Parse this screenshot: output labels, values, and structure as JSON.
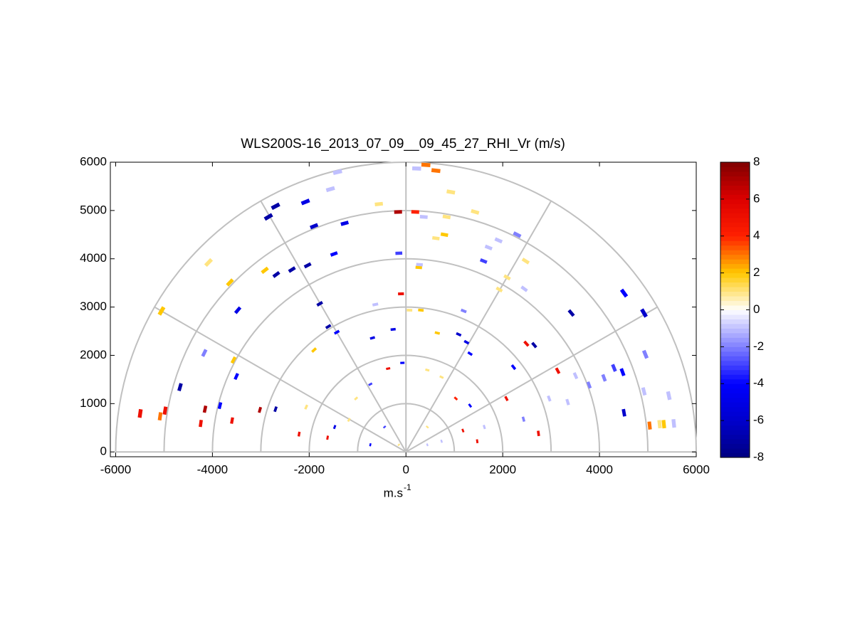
{
  "chart_data": {
    "type": "scatter",
    "title": "WLS200S-16_2013_07_09__09_45_27_RHI_Vr (m/s)",
    "x_label": "m.s",
    "x_label_superscript": "-1",
    "xlim": [
      -6110,
      6000
    ],
    "ylim": [
      -100,
      6000
    ],
    "xticks": [
      -6000,
      -4000,
      -2000,
      0,
      2000,
      4000,
      6000
    ],
    "yticks": [
      0,
      1000,
      2000,
      3000,
      4000,
      5000,
      6000
    ],
    "polar_rings": [
      1000,
      2000,
      3000,
      4000,
      5000,
      6000
    ],
    "polar_spokes_deg": [
      0,
      30,
      60,
      90,
      120,
      150,
      180
    ],
    "clim": [
      -8,
      8
    ],
    "colorbar_ticks": [
      -8,
      -6,
      -4,
      -2,
      0,
      2,
      4,
      6,
      8
    ],
    "colormap": [
      "#000080",
      "#0000cc",
      "#0000ff",
      "#8080ff",
      "#ffffff",
      "#ffc800",
      "#ff2000",
      "#dd0000",
      "#800000"
    ],
    "x": [
      -1414,
      -1561,
      -2695,
      -2842,
      -2077,
      -1267,
      -1900,
      -560,
      -162,
      221,
      412,
      619,
      928,
      1428,
      192,
      368,
      840,
      795,
      619,
      2298,
      1708,
      1914,
      1605,
      2474,
      2091,
      1929,
      2445,
      3417,
      4507,
      4919,
      2489,
      2651,
      3137,
      3505,
      4300,
      4477,
      4948,
      3785,
      4094,
      4919,
      5434,
      4507,
      5037,
      5243,
      5537,
      5331,
      2960,
      3343,
      2430,
      2739,
      2077,
      2224,
      1325,
      1252,
      1090,
      1193,
      648,
      309,
      74,
      -103,
      265,
      280,
      -147,
      -633,
      -265,
      -692,
      -1429,
      -1605,
      -1782,
      -1900,
      -1487,
      -2032,
      -2356,
      -2680,
      -2916,
      -3476,
      -3638,
      -4080,
      -5052,
      -4168,
      -3505,
      -3564,
      -4669,
      -5081,
      -4978,
      -5493,
      -4153,
      -4241,
      -3594,
      -3019,
      -2695,
      -3844,
      -2062,
      -2209,
      -368,
      -74,
      442,
      736,
      -736,
      -1031,
      1031,
      1325,
      -1473,
      -1178,
      -442,
      442,
      1178,
      1620,
      -147,
      442,
      736,
      -736,
      1473,
      -1620
    ],
    "y": [
      5796,
      5442,
      5088,
      4867,
      5177,
      4734,
      4675,
      5133,
      4970,
      5870,
      5944,
      5826,
      5383,
      4970,
      4970,
      4867,
      4867,
      4499,
      4425,
      4499,
      4233,
      4381,
      3953,
      3953,
      3614,
      3363,
      3378,
      2876,
      3289,
      2876,
      2242,
      2212,
      1681,
      1578,
      1740,
      1652,
      2020,
      1386,
      1534,
      1254,
      1165,
      811,
      546,
      575,
      590,
      575,
      1106,
      1032,
      678,
      383,
      1106,
      1755,
      2035,
      2271,
      2434,
      2920,
      2463,
      2935,
      2935,
      3274,
      3820,
      3879,
      4115,
      3053,
      2537,
      2360,
      2478,
      2596,
      3068,
      2109,
      4100,
      3864,
      3776,
      3673,
      3761,
      2935,
      3510,
      3923,
      2920,
      2050,
      1563,
      1903,
      1342,
      737,
      855,
      796,
      885,
      590,
      649,
      870,
      885,
      959,
      929,
      369,
      1726,
      1844,
      1696,
      1549,
      1401,
      1106,
      1106,
      959,
      516,
      664,
      516,
      516,
      442,
      516,
      147,
      147,
      221,
      147,
      221,
      295
    ],
    "values": [
      -1,
      -1,
      -7,
      -7,
      -5,
      -5,
      -6,
      1,
      7,
      -1,
      3,
      3,
      1,
      1,
      4,
      -1,
      1,
      2,
      1,
      -2,
      -1,
      -1,
      -3,
      1,
      1,
      1,
      -1,
      -7,
      -4,
      -6,
      5,
      -7,
      5,
      -1,
      -3,
      -4,
      -2,
      -2,
      -2,
      -1,
      -1,
      -6,
      3,
      1,
      -1,
      2,
      -1,
      -1,
      -2,
      5,
      5,
      -4,
      -4,
      -5,
      -6,
      -2,
      2,
      2,
      1,
      5,
      2,
      -1,
      -3,
      -1,
      -5,
      -5,
      -4,
      -7,
      -7,
      2,
      -4,
      -7,
      -7,
      -7,
      2,
      -5,
      2,
      1,
      2,
      -2,
      -4,
      2,
      -7,
      3,
      5,
      5,
      7,
      5,
      5,
      7,
      -7,
      -4,
      1,
      5,
      5,
      -4,
      1,
      1,
      -3,
      1,
      4,
      -4,
      -5,
      1,
      -3,
      1,
      5,
      -1,
      1,
      -1,
      -1,
      -4,
      5,
      5
    ]
  }
}
